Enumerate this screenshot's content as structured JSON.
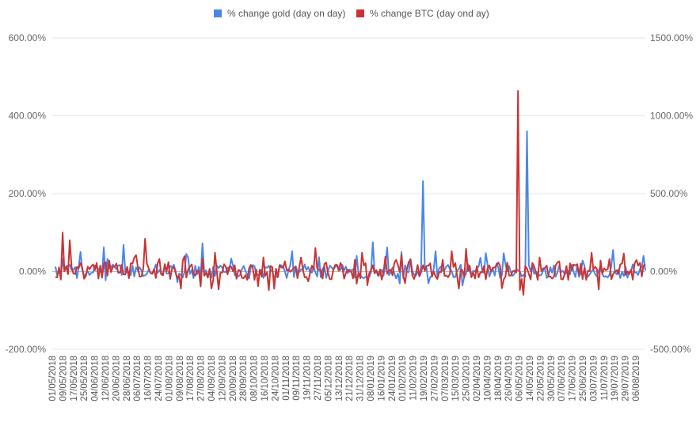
{
  "chart_data": {
    "type": "line",
    "title": "",
    "legend_position": "top",
    "grid": true,
    "x_tick_labels": [
      "01/05/2018",
      "09/05/2018",
      "17/05/2018",
      "25/05/2018",
      "04/06/2018",
      "12/06/2018",
      "20/06/2018",
      "28/06/2018",
      "06/07/2018",
      "16/07/2018",
      "24/07/2018",
      "01/08/2018",
      "09/08/2018",
      "17/08/2018",
      "27/08/2018",
      "04/09/2018",
      "12/09/2018",
      "20/09/2018",
      "28/09/2018",
      "08/10/2018",
      "16/10/2018",
      "24/10/2018",
      "01/11/2018",
      "09/11/2018",
      "19/11/2018",
      "27/11/2018",
      "05/12/2018",
      "13/12/2018",
      "21/12/2018",
      "31/12/2018",
      "08/01/2019",
      "16/01/2019",
      "24/01/2019",
      "01/02/2019",
      "11/02/2019",
      "19/02/2019",
      "27/02/2019",
      "07/03/2019",
      "15/03/2019",
      "25/03/2019",
      "02/04/2019",
      "10/04/2019",
      "18/04/2019",
      "26/04/2019",
      "06/05/2019",
      "14/05/2019",
      "22/05/2019",
      "30/05/2019",
      "07/06/2019",
      "17/06/2019",
      "25/06/2019",
      "03/07/2019",
      "11/07/2019",
      "19/07/2019",
      "29/07/2019",
      "06/08/2019"
    ],
    "y_left": {
      "ticks": [
        "-200.00%",
        "0.00%",
        "200.00%",
        "400.00%",
        "600.00%"
      ],
      "min": -200,
      "max": 600
    },
    "y_right": {
      "ticks": [
        "-500.00%",
        "0.00%",
        "500.00%",
        "1000.00%",
        "1500.00%"
      ],
      "min": -500,
      "max": 1500
    },
    "series": [
      {
        "name": "% change gold (day on day)",
        "axis": "left",
        "color": "#4a86e8",
        "n_points": 330,
        "spikes": [
          [
            14,
            50
          ],
          [
            27,
            62
          ],
          [
            38,
            68
          ],
          [
            73,
            45
          ],
          [
            82,
            72
          ],
          [
            132,
            52
          ],
          [
            168,
            40
          ],
          [
            177,
            75
          ],
          [
            185,
            62
          ],
          [
            193,
            50
          ],
          [
            205,
            232
          ],
          [
            212,
            52
          ],
          [
            240,
            47
          ],
          [
            250,
            47
          ],
          [
            263,
            360
          ],
          [
            311,
            55
          ],
          [
            328,
            40
          ]
        ]
      },
      {
        "name": "% change BTC (day ond ay)",
        "axis": "right",
        "color": "#cc3333",
        "n_points": 330,
        "spikes": [
          [
            4,
            250
          ],
          [
            8,
            200
          ],
          [
            14,
            55
          ],
          [
            21,
            45
          ],
          [
            28,
            60
          ],
          [
            30,
            70
          ],
          [
            34,
            50
          ],
          [
            42,
            52
          ],
          [
            44,
            90
          ],
          [
            50,
            210
          ],
          [
            58,
            80
          ],
          [
            63,
            60
          ],
          [
            71,
            70
          ],
          [
            76,
            45
          ],
          [
            82,
            85
          ],
          [
            89,
            120
          ],
          [
            100,
            40
          ],
          [
            116,
            90
          ],
          [
            128,
            65
          ],
          [
            137,
            90
          ],
          [
            145,
            150
          ],
          [
            151,
            57
          ],
          [
            157,
            40
          ],
          [
            159,
            55
          ],
          [
            167,
            75
          ],
          [
            171,
            120
          ],
          [
            177,
            40
          ],
          [
            184,
            95
          ],
          [
            189,
            55
          ],
          [
            193,
            105
          ],
          [
            197,
            60
          ],
          [
            205,
            40
          ],
          [
            216,
            75
          ],
          [
            221,
            130
          ],
          [
            229,
            145
          ],
          [
            239,
            35
          ],
          [
            246,
            42
          ],
          [
            252,
            57
          ],
          [
            258,
            1160
          ],
          [
            266,
            55
          ],
          [
            270,
            90
          ],
          [
            279,
            40
          ],
          [
            281,
            65
          ],
          [
            285,
            35
          ],
          [
            291,
            45
          ],
          [
            299,
            120
          ],
          [
            304,
            70
          ],
          [
            309,
            80
          ],
          [
            315,
            45
          ],
          [
            317,
            115
          ],
          [
            326,
            55
          ]
        ]
      }
    ]
  }
}
